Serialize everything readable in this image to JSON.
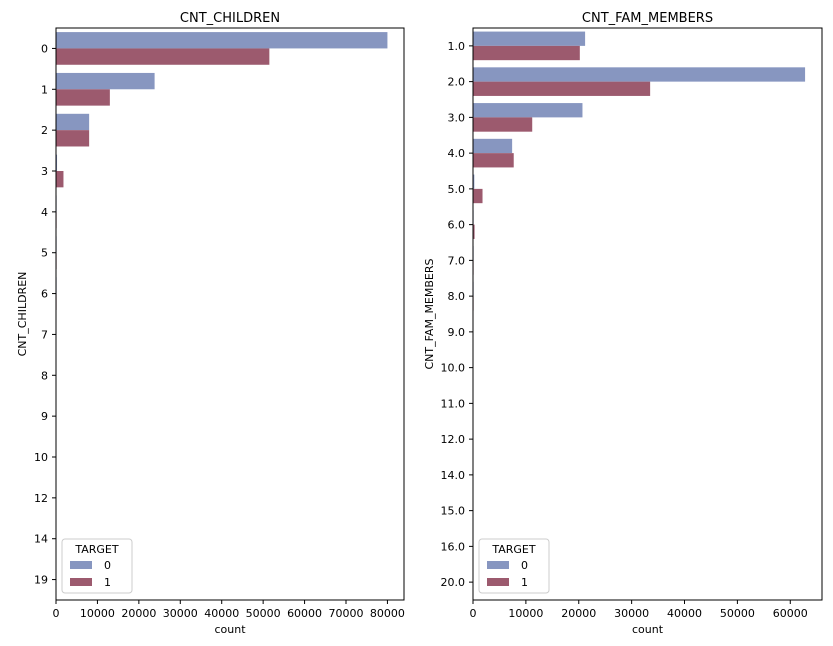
{
  "colors": {
    "target_0": "#8796c0",
    "target_1": "#9c5a6e"
  },
  "chart_data": [
    {
      "type": "bar",
      "orientation": "horizontal",
      "title": "CNT_CHILDREN",
      "xlabel": "count",
      "ylabel": "CNT_CHILDREN",
      "categories": [
        "0",
        "1",
        "2",
        "3",
        "4",
        "5",
        "6",
        "7",
        "8",
        "9",
        "10",
        "12",
        "14",
        "19"
      ],
      "series": [
        {
          "name": "0",
          "values": [
            80000,
            23800,
            8000,
            250,
            20,
            5,
            3,
            0,
            0,
            0,
            0,
            0,
            0,
            0
          ]
        },
        {
          "name": "1",
          "values": [
            51500,
            13000,
            8000,
            1800,
            30,
            5,
            3,
            0,
            0,
            0,
            0,
            0,
            0,
            0
          ]
        }
      ],
      "xlim": [
        0,
        84000
      ],
      "xticks": [
        0,
        10000,
        20000,
        30000,
        40000,
        50000,
        60000,
        70000,
        80000
      ],
      "legend": {
        "title": "TARGET",
        "labels": [
          "0",
          "1"
        ],
        "placement": "lower-left"
      },
      "grid": false
    },
    {
      "type": "bar",
      "orientation": "horizontal",
      "title": "CNT_FAM_MEMBERS",
      "xlabel": "count",
      "ylabel": "CNT_FAM_MEMBERS",
      "categories": [
        "1.0",
        "2.0",
        "3.0",
        "4.0",
        "5.0",
        "6.0",
        "7.0",
        "8.0",
        "9.0",
        "10.0",
        "11.0",
        "12.0",
        "14.0",
        "15.0",
        "16.0",
        "20.0"
      ],
      "series": [
        {
          "name": "0",
          "values": [
            21200,
            62800,
            20700,
            7400,
            250,
            30,
            5,
            3,
            0,
            0,
            0,
            0,
            0,
            0,
            0,
            0
          ]
        },
        {
          "name": "1",
          "values": [
            20200,
            33500,
            11200,
            7700,
            1800,
            300,
            20,
            5,
            0,
            0,
            0,
            0,
            0,
            0,
            0,
            0
          ]
        }
      ],
      "xlim": [
        0,
        66000
      ],
      "xticks": [
        0,
        10000,
        20000,
        30000,
        40000,
        50000,
        60000
      ],
      "legend": {
        "title": "TARGET",
        "labels": [
          "0",
          "1"
        ],
        "placement": "lower-left"
      },
      "grid": false
    }
  ]
}
